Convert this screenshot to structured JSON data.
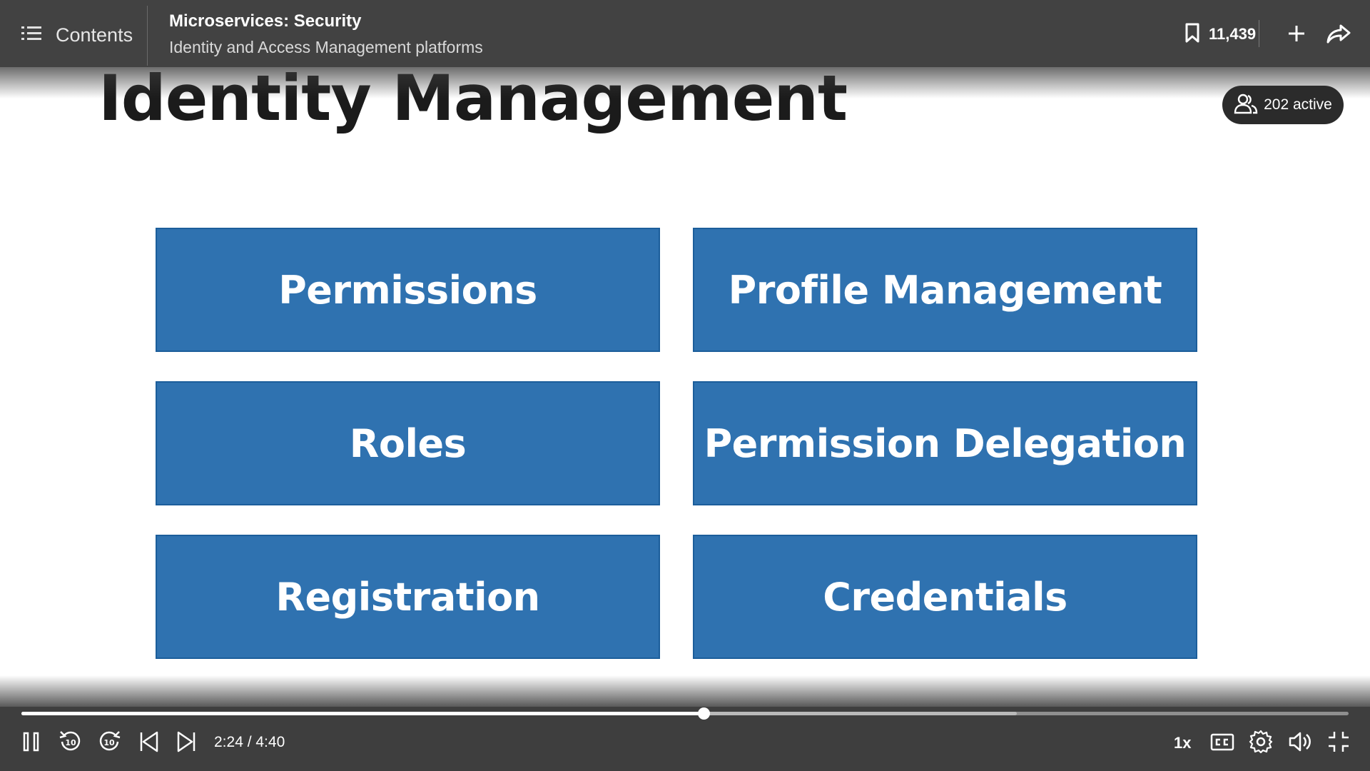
{
  "header": {
    "contents_label": "Contents",
    "course_title": "Microservices: Security",
    "video_title": "Identity and Access Management platforms",
    "bookmark_count": "11,439"
  },
  "slide": {
    "title": "Identity Management",
    "tiles": [
      "Permissions",
      "Profile Management",
      "Roles",
      "Permission Delegation",
      "Registration",
      "Credentials"
    ]
  },
  "presence": {
    "active_label": "202 active"
  },
  "player": {
    "time_display": "2:24 / 4:40",
    "speed_label": "1x",
    "played_fraction": 0.514,
    "buffered_fraction": 0.75,
    "skip_back_seconds": "10",
    "skip_forward_seconds": "10"
  },
  "colors": {
    "tile_fill": "#2f72b0",
    "bar_background": "#424242"
  }
}
